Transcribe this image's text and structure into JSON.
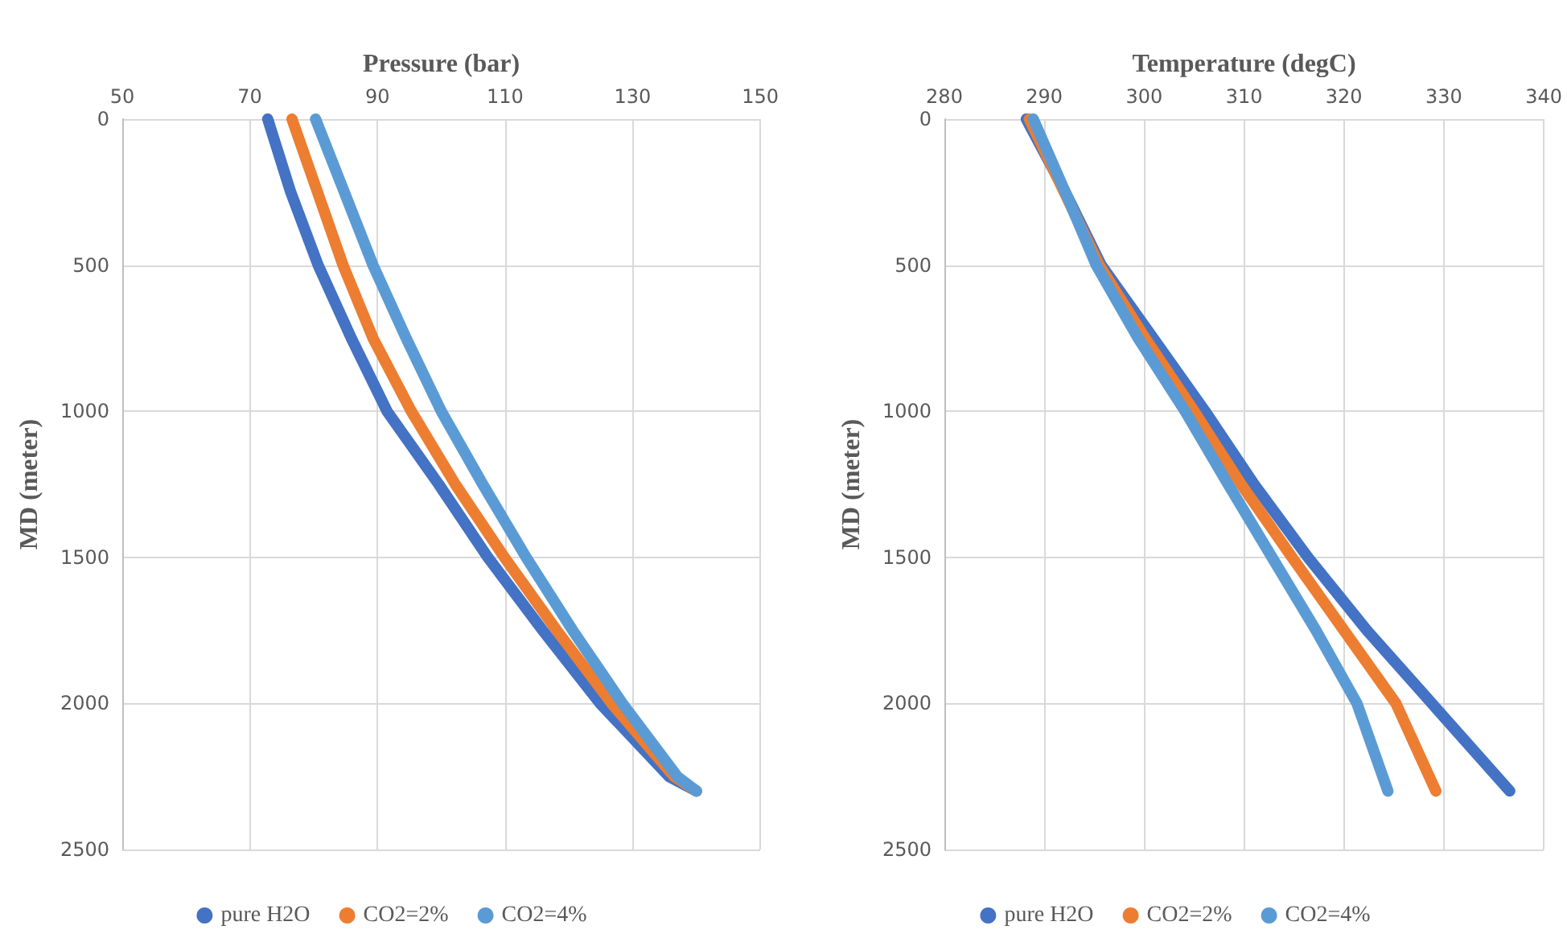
{
  "chart_data": [
    {
      "type": "line",
      "xlabel": "Pressure (bar)",
      "ylabel": "MD (meter)",
      "xlim": [
        50,
        150
      ],
      "xticks": [
        50,
        70,
        90,
        110,
        130,
        150
      ],
      "ylim": [
        2500,
        0
      ],
      "yticks": [
        0,
        500,
        1000,
        1500,
        2000,
        2500
      ],
      "grid": true,
      "legend": "bottom",
      "marker": "none",
      "line_style": "solid",
      "series": [
        {
          "name": "pure H2O",
          "color": "#4472c4",
          "x": [
            72.8,
            76.4,
            80.7,
            85.9,
            91.5,
            99.6,
            107.3,
            115.9,
            124.9,
            135.7,
            140
          ],
          "values": [
            0,
            250,
            500,
            750,
            1000,
            1250,
            1500,
            1750,
            2000,
            2250,
            2300
          ]
        },
        {
          "name": "CO2=2%",
          "color": "#ed7d31",
          "x": [
            76.6,
            80.6,
            84.6,
            89.3,
            95.3,
            102.2,
            109.9,
            118.1,
            126.7,
            136.5,
            140
          ],
          "values": [
            0,
            250,
            500,
            750,
            1000,
            1250,
            1500,
            1750,
            2000,
            2250,
            2300
          ]
        },
        {
          "name": "CO2=4%",
          "color": "#5b9bd5",
          "x": [
            80.3,
            84.8,
            89.3,
            94.5,
            100,
            106.5,
            113.3,
            120.6,
            128.4,
            137,
            140
          ],
          "values": [
            0,
            250,
            500,
            750,
            1000,
            1250,
            1500,
            1750,
            2000,
            2250,
            2300
          ]
        }
      ]
    },
    {
      "type": "line",
      "xlabel": "Temperature (degC)",
      "ylabel": "MD (meter)",
      "xlim": [
        280,
        340
      ],
      "xticks": [
        280,
        290,
        300,
        310,
        320,
        330,
        340
      ],
      "ylim": [
        2500,
        0
      ],
      "yticks": [
        0,
        500,
        1000,
        1500,
        2000,
        2500
      ],
      "grid": true,
      "legend": "bottom",
      "marker": "none",
      "line_style": "solid",
      "series": [
        {
          "name": "pure H2O",
          "color": "#4472c4",
          "x": [
            288.2,
            292.1,
            295.7,
            300.9,
            306.1,
            311,
            316.4,
            322.3,
            328.8,
            336.6
          ],
          "values": [
            0,
            250,
            500,
            750,
            1000,
            1250,
            1500,
            1750,
            2000,
            2300
          ]
        },
        {
          "name": "CO2=2%",
          "color": "#ed7d31",
          "x": [
            288.5,
            295.5,
            300.1,
            305,
            309.7,
            314.8,
            320,
            325.2,
            329.2
          ],
          "values": [
            0,
            500,
            750,
            1000,
            1250,
            1500,
            1750,
            2000,
            2300
          ]
        },
        {
          "name": "CO2=4%",
          "color": "#5b9bd5",
          "x": [
            288.9,
            292.1,
            295.2,
            299.4,
            304.1,
            308.4,
            312.8,
            317.2,
            321.3,
            324.4
          ],
          "values": [
            0,
            250,
            500,
            750,
            1000,
            1250,
            1500,
            1750,
            2000,
            2300
          ]
        }
      ]
    }
  ]
}
